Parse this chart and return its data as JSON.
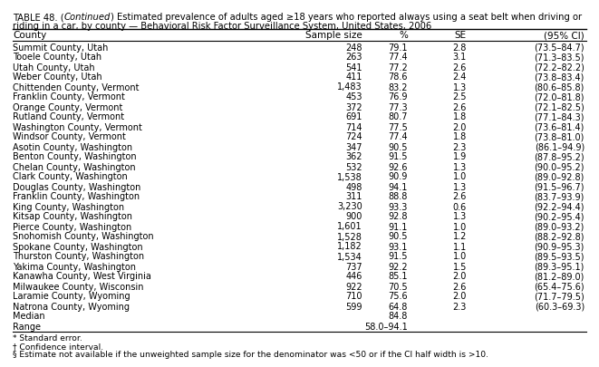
{
  "title_part1": "TABLE 48. (",
  "title_italic": "Continued",
  "title_part2": ") Estimated prevalence of adults aged ≥18 years who reported always using a seat belt when driving or",
  "title_line2": "riding in a car, by county — Behavioral Risk Factor Surveillance System, United States, 2006",
  "headers": [
    "County",
    "Sample size",
    "%",
    "SE",
    "(95% CI)"
  ],
  "rows": [
    [
      "Summit County, Utah",
      "248",
      "79.1",
      "2.8",
      "(73.5–84.7)"
    ],
    [
      "Tooele County, Utah",
      "263",
      "77.4",
      "3.1",
      "(71.3–83.5)"
    ],
    [
      "Utah County, Utah",
      "541",
      "77.2",
      "2.6",
      "(72.2–82.2)"
    ],
    [
      "Weber County, Utah",
      "411",
      "78.6",
      "2.4",
      "(73.8–83.4)"
    ],
    [
      "Chittenden County, Vermont",
      "1,483",
      "83.2",
      "1.3",
      "(80.6–85.8)"
    ],
    [
      "Franklin County, Vermont",
      "453",
      "76.9",
      "2.5",
      "(72.0–81.8)"
    ],
    [
      "Orange County, Vermont",
      "372",
      "77.3",
      "2.6",
      "(72.1–82.5)"
    ],
    [
      "Rutland County, Vermont",
      "691",
      "80.7",
      "1.8",
      "(77.1–84.3)"
    ],
    [
      "Washington County, Vermont",
      "714",
      "77.5",
      "2.0",
      "(73.6–81.4)"
    ],
    [
      "Windsor County, Vermont",
      "724",
      "77.4",
      "1.8",
      "(73.8–81.0)"
    ],
    [
      "Asotin County, Washington",
      "347",
      "90.5",
      "2.3",
      "(86.1–94.9)"
    ],
    [
      "Benton County, Washington",
      "362",
      "91.5",
      "1.9",
      "(87.8–95.2)"
    ],
    [
      "Chelan County, Washington",
      "532",
      "92.6",
      "1.3",
      "(90.0–95.2)"
    ],
    [
      "Clark County, Washington",
      "1,538",
      "90.9",
      "1.0",
      "(89.0–92.8)"
    ],
    [
      "Douglas County, Washington",
      "498",
      "94.1",
      "1.3",
      "(91.5–96.7)"
    ],
    [
      "Franklin County, Washington",
      "311",
      "88.8",
      "2.6",
      "(83.7–93.9)"
    ],
    [
      "King County, Washington",
      "3,230",
      "93.3",
      "0.6",
      "(92.2–94.4)"
    ],
    [
      "Kitsap County, Washington",
      "900",
      "92.8",
      "1.3",
      "(90.2–95.4)"
    ],
    [
      "Pierce County, Washington",
      "1,601",
      "91.1",
      "1.0",
      "(89.0–93.2)"
    ],
    [
      "Snohomish County, Washington",
      "1,528",
      "90.5",
      "1.2",
      "(88.2–92.8)"
    ],
    [
      "Spokane County, Washington",
      "1,182",
      "93.1",
      "1.1",
      "(90.9–95.3)"
    ],
    [
      "Thurston County, Washington",
      "1,534",
      "91.5",
      "1.0",
      "(89.5–93.5)"
    ],
    [
      "Yakima County, Washington",
      "737",
      "92.2",
      "1.5",
      "(89.3–95.1)"
    ],
    [
      "Kanawha County, West Virginia",
      "446",
      "85.1",
      "2.0",
      "(81.2–89.0)"
    ],
    [
      "Milwaukee County, Wisconsin",
      "922",
      "70.5",
      "2.6",
      "(65.4–75.6)"
    ],
    [
      "Laramie County, Wyoming",
      "710",
      "75.6",
      "2.0",
      "(71.7–79.5)"
    ],
    [
      "Natrona County, Wyoming",
      "599",
      "64.8",
      "2.3",
      "(60.3–69.3)"
    ]
  ],
  "median_label": "Median",
  "median_value": "84.8",
  "range_label": "Range",
  "range_value": "58.0–94.1",
  "footnotes": [
    "* Standard error.",
    "† Confidence interval.",
    "§ Estimate not available if the unweighted sample size for the denominator was <50 or if the CI half width is >10."
  ],
  "bg_color": "#ffffff",
  "text_color": "#000000",
  "font_size": 7.0,
  "title_font_size": 7.2,
  "header_font_size": 7.5
}
